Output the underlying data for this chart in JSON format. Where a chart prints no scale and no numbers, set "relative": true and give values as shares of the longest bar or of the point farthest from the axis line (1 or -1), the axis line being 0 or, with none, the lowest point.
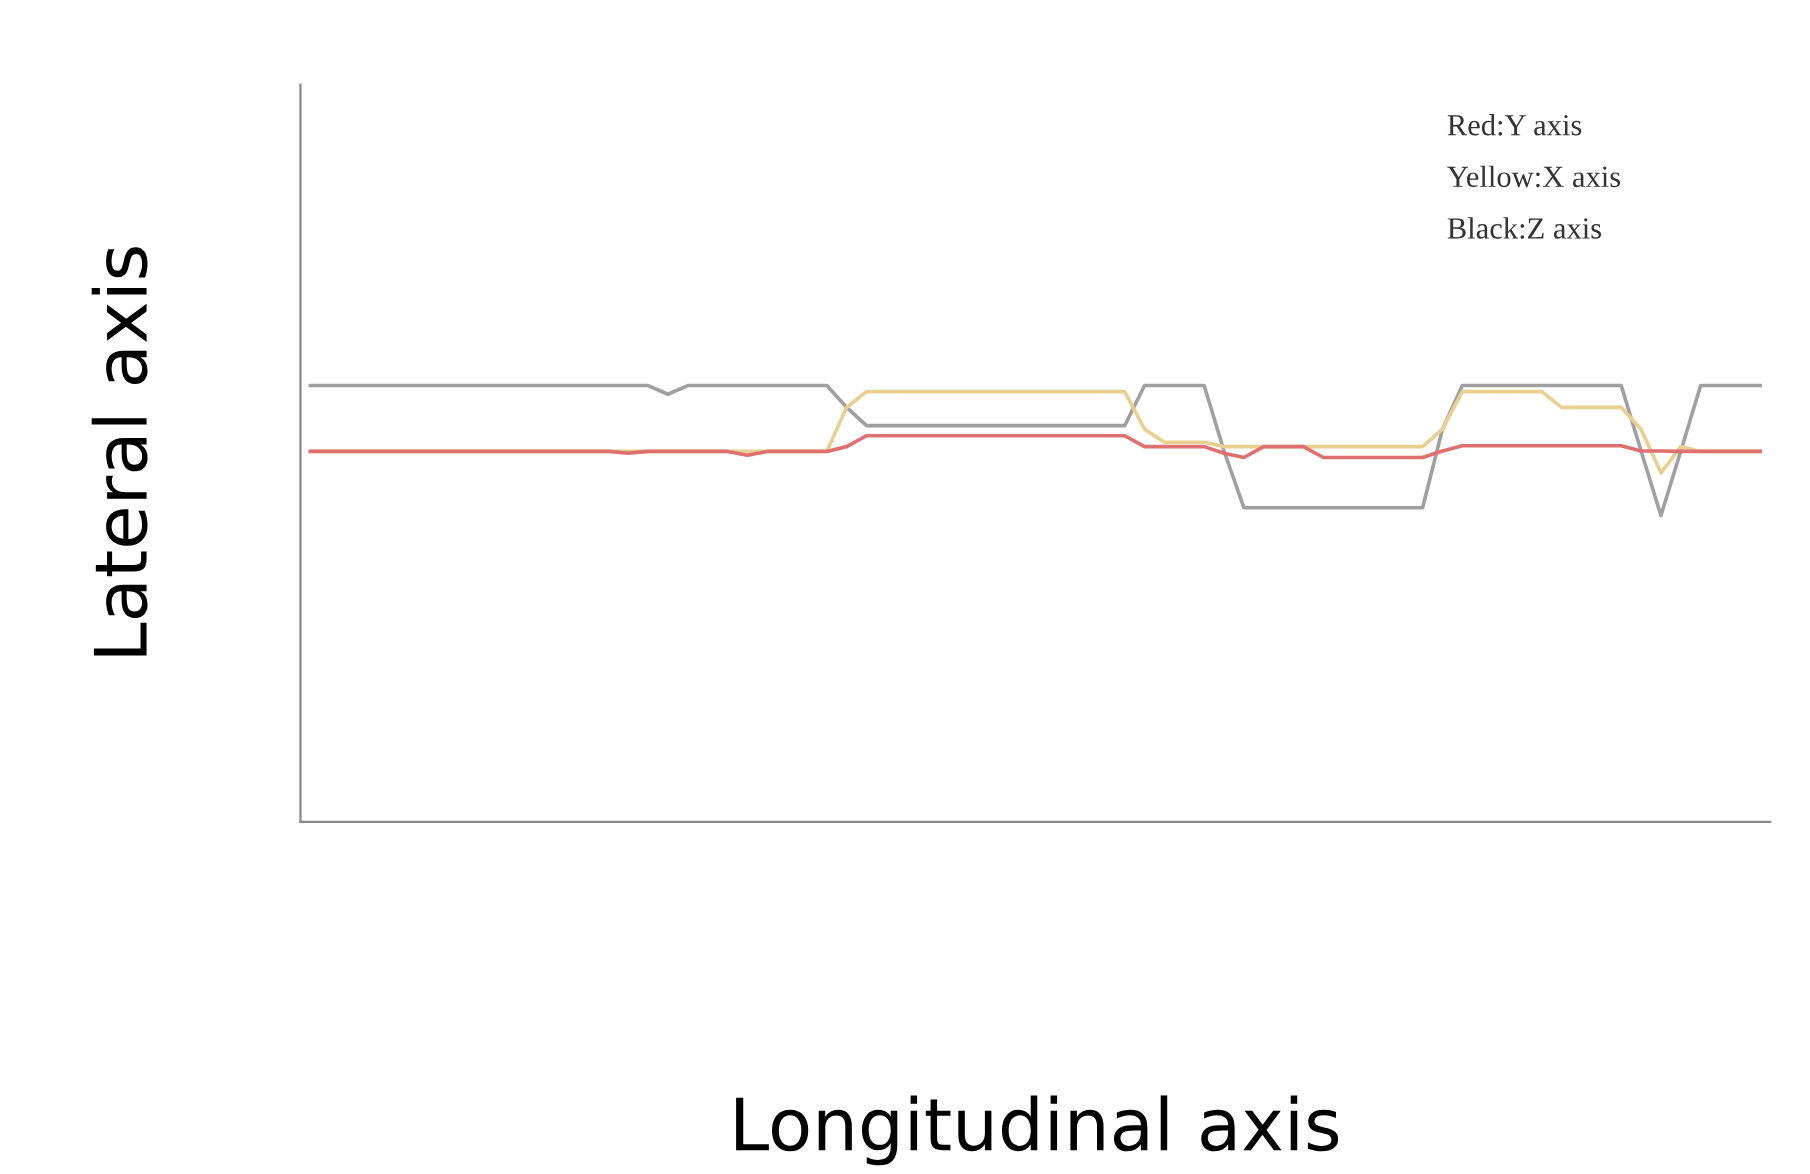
{
  "chart_data": {
    "type": "line",
    "relative": true,
    "xlabel": "Longitudinal axis",
    "ylabel": "Lateral axis",
    "categories": [
      null,
      null,
      null,
      null,
      null,
      null,
      null,
      null,
      null,
      null,
      null,
      null,
      null,
      null,
      null,
      null,
      null,
      null,
      null,
      null,
      null,
      null,
      null,
      null,
      null,
      null,
      null,
      null,
      null,
      null,
      null,
      null,
      null,
      null,
      null,
      null,
      null,
      null,
      null,
      null,
      null,
      null,
      null,
      null,
      null,
      null,
      null,
      null,
      null,
      null,
      null,
      null,
      null,
      null,
      null,
      null,
      null,
      null,
      null,
      null,
      null,
      null,
      null,
      null,
      null,
      null,
      null,
      null,
      null,
      null,
      null,
      null,
      null,
      null
    ],
    "annotations": [
      "Red:Y axis",
      "Yellow:X axis",
      "Black:Z axis"
    ],
    "marker": "none",
    "line_style": "solid",
    "grid": false,
    "legend": false,
    "series": [
      {
        "color": "#a0a0a0",
        "values": [
          1,
          1,
          1,
          1,
          1,
          1,
          1,
          1,
          1,
          1,
          1,
          1,
          1,
          1,
          1,
          1,
          1,
          1,
          0.98,
          1,
          1,
          1,
          1,
          1,
          1,
          1,
          1,
          0.95,
          0.908,
          0.908,
          0.908,
          0.908,
          0.908,
          0.908,
          0.908,
          0.908,
          0.908,
          0.908,
          0.908,
          0.908,
          0.908,
          0.908,
          1,
          1,
          1,
          1,
          0.85,
          0.72,
          0.72,
          0.72,
          0.72,
          0.72,
          0.72,
          0.72,
          0.72,
          0.72,
          0.72,
          0.9,
          1,
          1,
          1,
          1,
          1,
          1,
          1,
          1,
          1,
          0.85,
          0.702,
          0.85,
          1,
          1,
          1,
          1
        ]
      },
      {
        "color": "#e8d090",
        "values": [
          0.849,
          0.849,
          0.849,
          0.849,
          0.849,
          0.849,
          0.849,
          0.849,
          0.849,
          0.849,
          0.849,
          0.849,
          0.849,
          0.849,
          0.849,
          0.849,
          0.849,
          0.849,
          0.849,
          0.849,
          0.849,
          0.849,
          0.849,
          0.849,
          0.849,
          0.849,
          0.849,
          0.95,
          0.986,
          0.986,
          0.986,
          0.986,
          0.986,
          0.986,
          0.986,
          0.986,
          0.986,
          0.986,
          0.986,
          0.986,
          0.986,
          0.986,
          0.9,
          0.87,
          0.87,
          0.87,
          0.86,
          0.86,
          0.86,
          0.86,
          0.86,
          0.86,
          0.86,
          0.86,
          0.86,
          0.86,
          0.86,
          0.9,
          0.986,
          0.986,
          0.986,
          0.986,
          0.986,
          0.95,
          0.95,
          0.95,
          0.95,
          0.9,
          0.8,
          0.86,
          0.849,
          0.849,
          0.849,
          0.849
        ]
      },
      {
        "color": "#e07070",
        "values": [
          0.849,
          0.849,
          0.849,
          0.849,
          0.849,
          0.849,
          0.849,
          0.849,
          0.849,
          0.849,
          0.849,
          0.849,
          0.849,
          0.849,
          0.849,
          0.849,
          0.845,
          0.849,
          0.849,
          0.849,
          0.849,
          0.849,
          0.84,
          0.849,
          0.849,
          0.849,
          0.849,
          0.86,
          0.885,
          0.885,
          0.885,
          0.885,
          0.885,
          0.885,
          0.885,
          0.885,
          0.885,
          0.885,
          0.885,
          0.885,
          0.885,
          0.885,
          0.86,
          0.86,
          0.86,
          0.86,
          0.845,
          0.835,
          0.86,
          0.86,
          0.86,
          0.835,
          0.835,
          0.835,
          0.835,
          0.835,
          0.835,
          0.85,
          0.862,
          0.862,
          0.862,
          0.862,
          0.862,
          0.862,
          0.862,
          0.862,
          0.862,
          0.85,
          0.85,
          0.849,
          0.849,
          0.849,
          0.849,
          0.849
        ]
      }
    ]
  }
}
